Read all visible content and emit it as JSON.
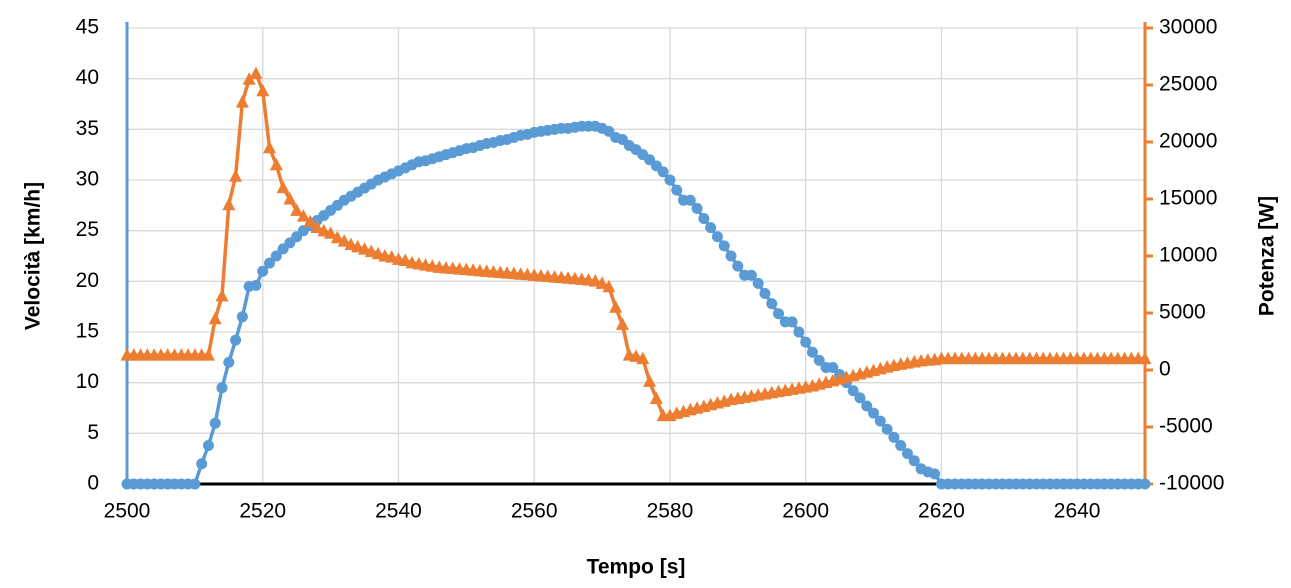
{
  "chart_data": {
    "type": "line",
    "x_label": "Tempo [s]",
    "y_label": "Velocità [km/h]",
    "y2_label": "Potenza [W]",
    "xlim": [
      2500,
      2650
    ],
    "xticks": [
      2500,
      2520,
      2540,
      2560,
      2580,
      2600,
      2620,
      2640
    ],
    "ylim": [
      0,
      45
    ],
    "yticks": [
      0,
      5,
      10,
      15,
      20,
      25,
      30,
      35,
      40,
      45
    ],
    "y2lim": [
      -10000,
      30000
    ],
    "y2ticks": [
      -10000,
      -5000,
      0,
      5000,
      10000,
      15000,
      20000,
      25000,
      30000
    ],
    "grid": true,
    "x": [
      2500,
      2501,
      2502,
      2503,
      2504,
      2505,
      2506,
      2507,
      2508,
      2509,
      2510,
      2511,
      2512,
      2513,
      2514,
      2515,
      2516,
      2517,
      2518,
      2519,
      2520,
      2521,
      2522,
      2523,
      2524,
      2525,
      2526,
      2527,
      2528,
      2529,
      2530,
      2531,
      2532,
      2533,
      2534,
      2535,
      2536,
      2537,
      2538,
      2539,
      2540,
      2541,
      2542,
      2543,
      2544,
      2545,
      2546,
      2547,
      2548,
      2549,
      2550,
      2551,
      2552,
      2553,
      2554,
      2555,
      2556,
      2557,
      2558,
      2559,
      2560,
      2561,
      2562,
      2563,
      2564,
      2565,
      2566,
      2567,
      2568,
      2569,
      2570,
      2571,
      2572,
      2573,
      2574,
      2575,
      2576,
      2577,
      2578,
      2579,
      2580,
      2581,
      2582,
      2583,
      2584,
      2585,
      2586,
      2587,
      2588,
      2589,
      2590,
      2591,
      2592,
      2593,
      2594,
      2595,
      2596,
      2597,
      2598,
      2599,
      2600,
      2601,
      2602,
      2603,
      2604,
      2605,
      2606,
      2607,
      2608,
      2609,
      2610,
      2611,
      2612,
      2613,
      2614,
      2615,
      2616,
      2617,
      2618,
      2619,
      2620,
      2621,
      2622,
      2623,
      2624,
      2625,
      2626,
      2627,
      2628,
      2629,
      2630,
      2631,
      2632,
      2633,
      2634,
      2635,
      2636,
      2637,
      2638,
      2639,
      2640,
      2641,
      2642,
      2643,
      2644,
      2645,
      2646,
      2647,
      2648,
      2649,
      2650
    ],
    "series": [
      {
        "color": "#5b9bd5",
        "marker": "circle",
        "values": [
          0,
          0,
          0,
          0,
          0,
          0,
          0,
          0,
          0,
          0,
          0,
          2,
          3.8,
          6,
          9.5,
          12,
          14.2,
          16.5,
          19.5,
          19.6,
          21,
          21.8,
          22.5,
          23.2,
          23.8,
          24.4,
          25,
          25.5,
          26,
          26.5,
          27,
          27.5,
          28,
          28.4,
          28.8,
          29.2,
          29.6,
          30,
          30.3,
          30.6,
          30.9,
          31.2,
          31.5,
          31.8,
          31.9,
          32.1,
          32.3,
          32.5,
          32.7,
          32.9,
          33.1,
          33.2,
          33.4,
          33.6,
          33.7,
          33.9,
          34,
          34.2,
          34.4,
          34.5,
          34.7,
          34.8,
          34.9,
          35,
          35.1,
          35.1,
          35.2,
          35.3,
          35.3,
          35.3,
          35.1,
          34.8,
          34.2,
          34,
          33.4,
          33,
          32.5,
          32,
          31.4,
          30.8,
          30,
          29,
          28,
          28,
          27.2,
          26.2,
          25.3,
          24.4,
          23.5,
          22.5,
          21.5,
          20.6,
          20.6,
          19.8,
          18.8,
          17.8,
          16.8,
          16,
          16,
          15,
          14,
          13,
          12.2,
          11.5,
          11.5,
          10.8,
          10,
          9.2,
          8.5,
          7.7,
          7,
          6.2,
          5.4,
          4.6,
          3.8,
          3,
          2.3,
          1.5,
          1.2,
          1,
          0,
          0,
          0,
          0,
          0,
          0,
          0,
          0,
          0,
          0,
          0,
          0,
          0,
          0,
          0,
          0,
          0,
          0,
          0,
          0,
          0,
          0,
          0,
          0,
          0,
          0,
          0,
          0,
          0,
          0,
          0
        ]
      },
      {
        "color": "#ed7d31",
        "marker": "triangle",
        "axis": "y2",
        "values": [
          1300,
          1300,
          1300,
          1300,
          1300,
          1300,
          1300,
          1300,
          1300,
          1300,
          1300,
          1300,
          1300,
          4500,
          6500,
          14500,
          17000,
          23500,
          25500,
          26000,
          24500,
          19500,
          18000,
          16000,
          15000,
          14000,
          13500,
          13000,
          12500,
          12200,
          12000,
          11600,
          11300,
          11000,
          10800,
          10600,
          10400,
          10200,
          10000,
          9900,
          9700,
          9600,
          9400,
          9300,
          9200,
          9100,
          9000,
          8950,
          8900,
          8850,
          8800,
          8750,
          8700,
          8650,
          8600,
          8550,
          8500,
          8450,
          8400,
          8350,
          8300,
          8250,
          8200,
          8150,
          8100,
          8050,
          8000,
          7950,
          7900,
          7800,
          7600,
          7300,
          5500,
          4000,
          1300,
          1200,
          1000,
          -1000,
          -2500,
          -4000,
          -4000,
          -3800,
          -3650,
          -3500,
          -3350,
          -3200,
          -3050,
          -2900,
          -2750,
          -2600,
          -2500,
          -2400,
          -2300,
          -2200,
          -2100,
          -2000,
          -1900,
          -1800,
          -1700,
          -1600,
          -1500,
          -1400,
          -1250,
          -1100,
          -950,
          -800,
          -650,
          -500,
          -350,
          -200,
          -50,
          100,
          250,
          400,
          500,
          600,
          700,
          800,
          850,
          900,
          1000,
          1000,
          1000,
          1000,
          1000,
          1000,
          1000,
          1000,
          1000,
          1000,
          1000,
          1000,
          1000,
          1000,
          1000,
          1000,
          1000,
          1000,
          1000,
          1000,
          1000,
          1000,
          1000,
          1000,
          1000,
          1000,
          1000,
          1000,
          1000,
          1000,
          1000
        ]
      }
    ]
  }
}
